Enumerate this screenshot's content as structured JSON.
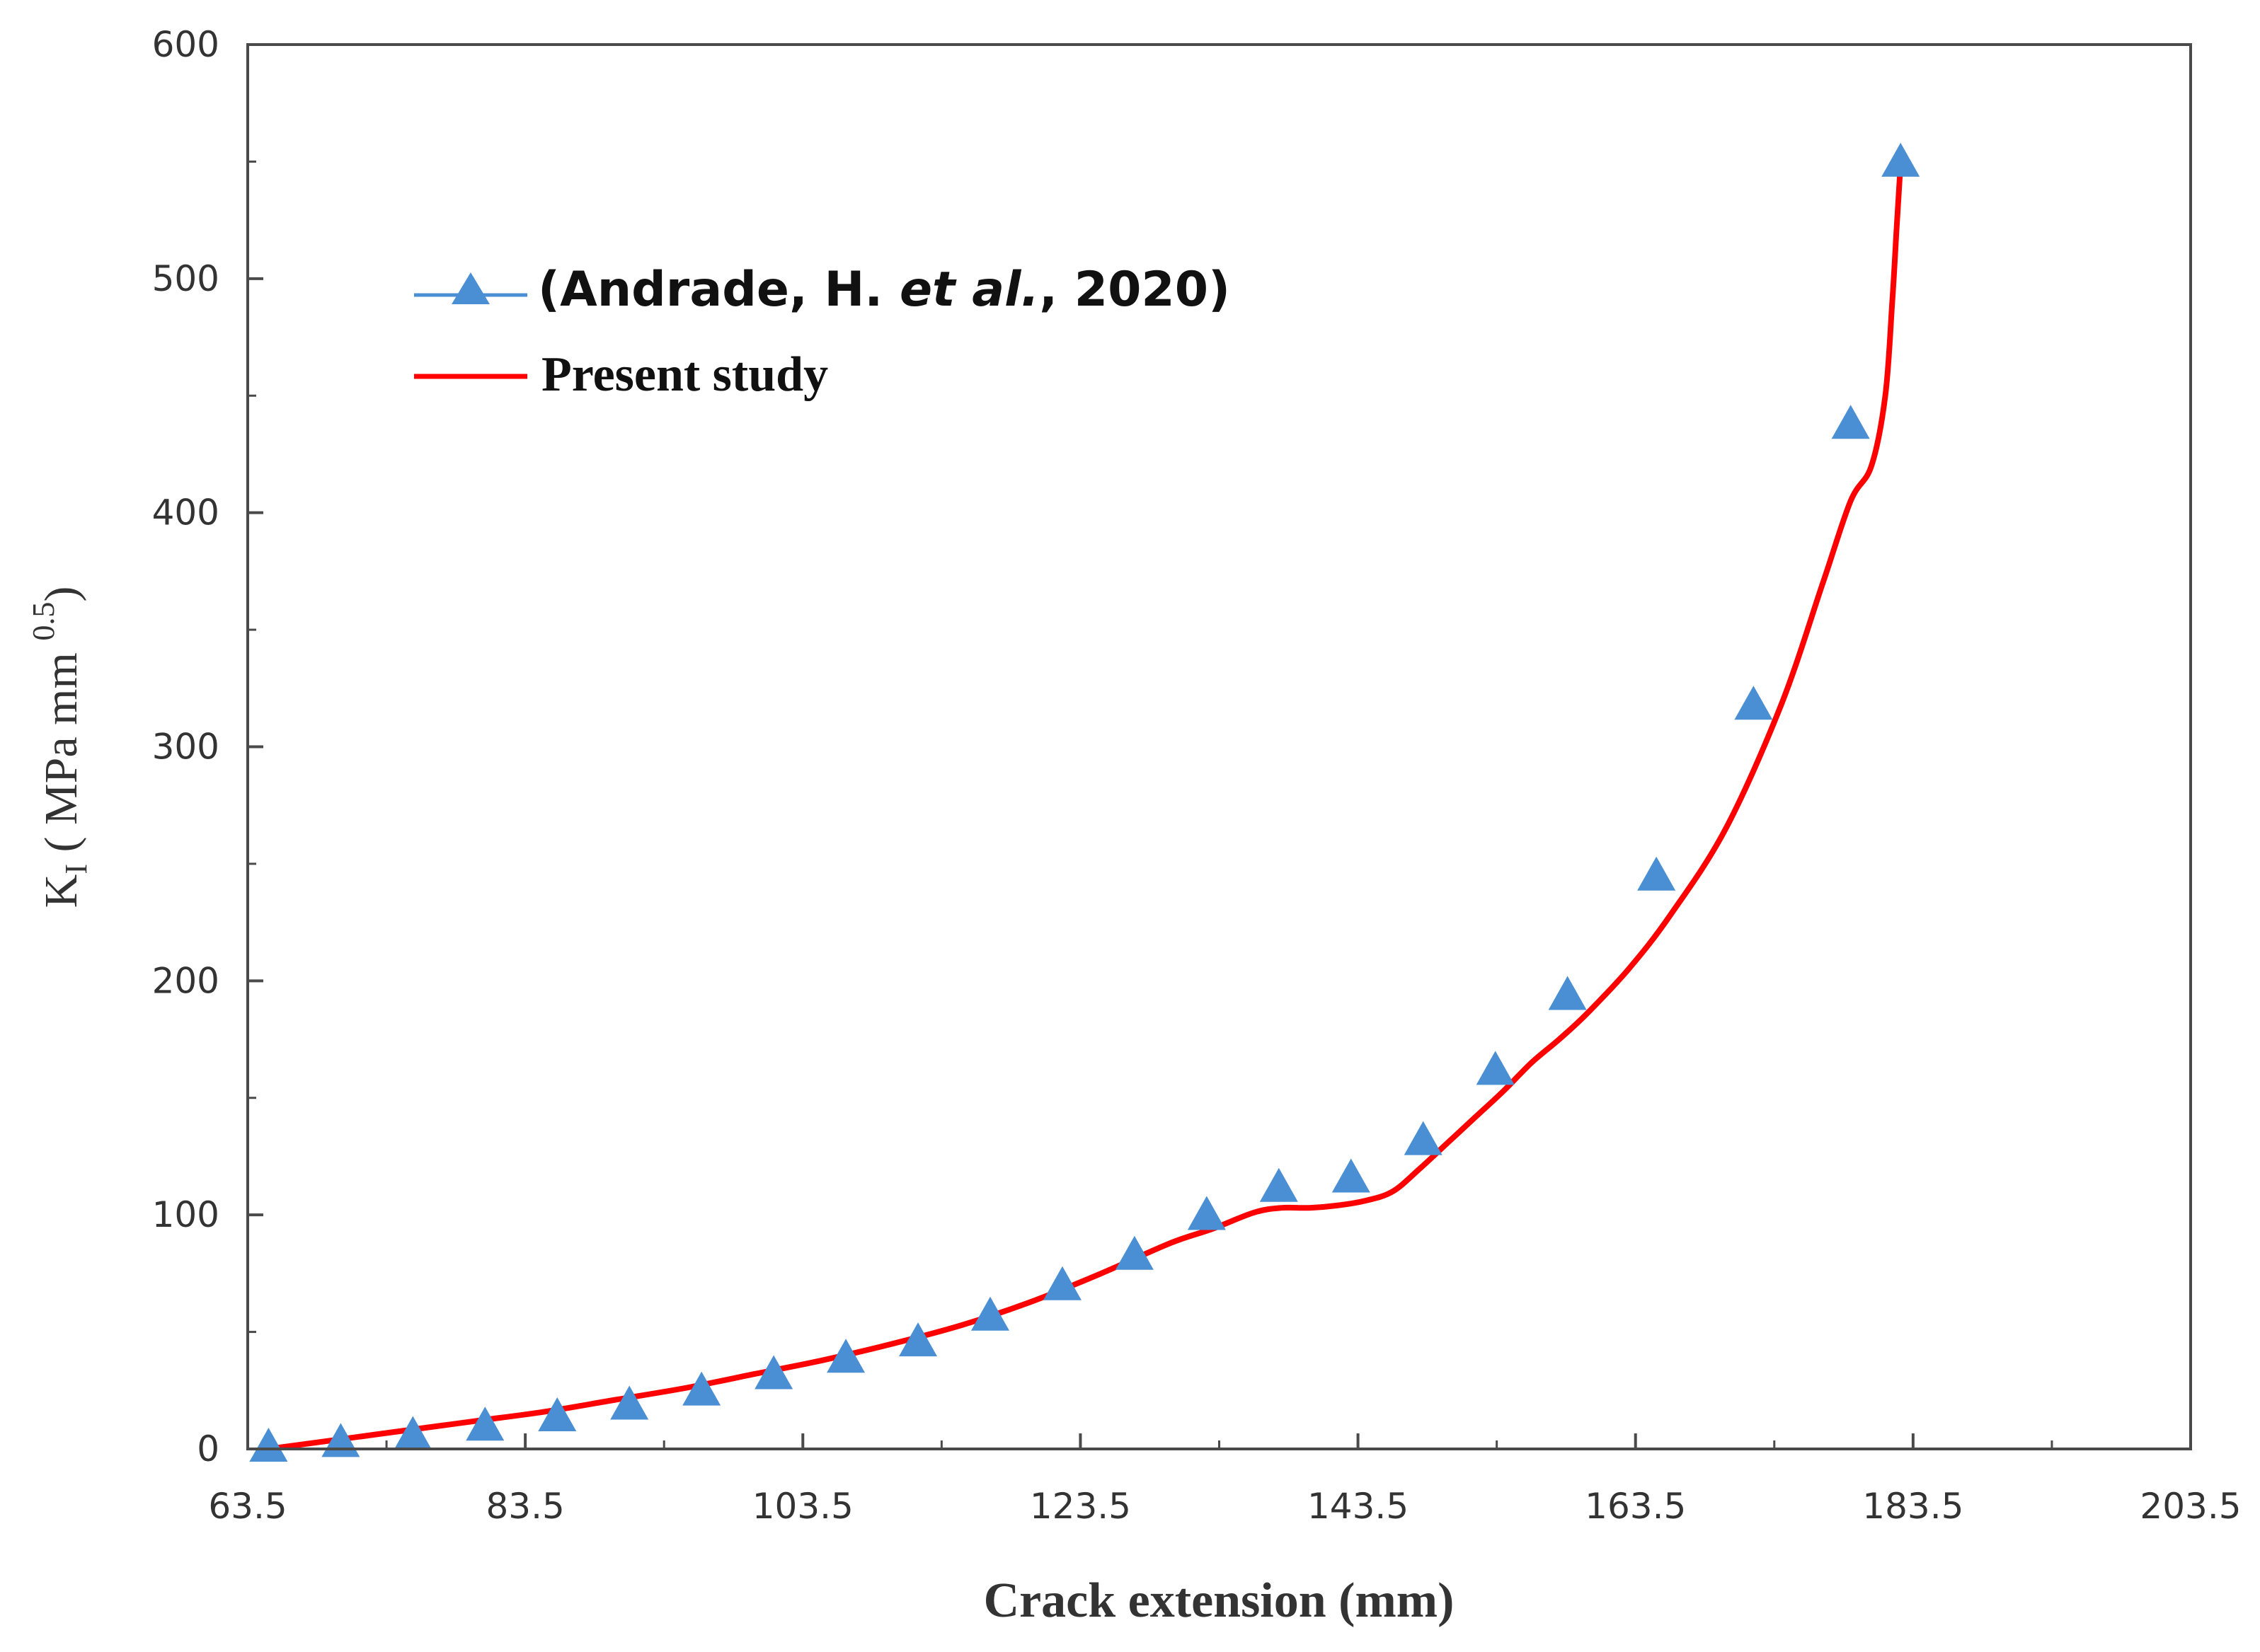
{
  "chart_data": {
    "type": "line",
    "title": "",
    "xlabel": "Crack extension (mm)",
    "ylabel": {
      "symbol": "K",
      "subscript": "I",
      "units_open": " (  MPa mm ",
      "exponent": "0.5",
      "units_close": ")"
    },
    "xlim": [
      63.5,
      203.5
    ],
    "ylim": [
      0,
      600
    ],
    "xticks": [
      "63.5",
      "83.5",
      "103.5",
      "123.5",
      "143.5",
      "163.5",
      "183.5",
      "203.5"
    ],
    "yticks": [
      "0",
      "100",
      "200",
      "300",
      "400",
      "500",
      "600"
    ],
    "grid": false,
    "legend_position": "top-left",
    "legend": {
      "series1_prefix": "(Andrade, H. ",
      "series1_italic": "et al.",
      "series1_suffix": ", 2020)",
      "series2_label": "Present study"
    },
    "series": [
      {
        "name": "(Andrade, H. et al., 2020)",
        "style": "markers",
        "marker": "triangle",
        "color": "#4a8fd4",
        "x": [
          65.0,
          70.2,
          75.4,
          80.6,
          85.8,
          91.0,
          96.2,
          101.4,
          106.6,
          111.8,
          117.0,
          122.2,
          127.4,
          132.6,
          137.8,
          143.0,
          148.2,
          153.4,
          158.6,
          165.0,
          172.0,
          179.0,
          182.6
        ],
        "y": [
          0,
          2,
          5,
          9,
          13,
          18,
          24,
          31,
          38,
          45,
          56,
          69,
          82,
          99,
          111,
          115,
          131,
          161,
          193,
          244,
          317,
          437,
          549
        ]
      },
      {
        "name": "Present study",
        "style": "line",
        "color": "#ff0000",
        "x": [
          65.0,
          70.0,
          75.0,
          80.0,
          85.0,
          90.0,
          95.0,
          100.0,
          105.0,
          110.0,
          115.0,
          120.0,
          125.0,
          130.0,
          133.0,
          136.0,
          138.0,
          140.0,
          142.0,
          144.0,
          146.0,
          148.0,
          150.0,
          152.0,
          154.0,
          156.0,
          158.0,
          160.0,
          163.0,
          166.0,
          170.0,
          174.0,
          177.0,
          179.0,
          180.5,
          181.5,
          182.0,
          182.3,
          182.6
        ],
        "y": [
          0,
          4,
          8,
          12,
          16,
          21,
          26,
          32,
          38,
          45,
          53,
          63,
          75,
          88,
          94,
          101,
          103,
          103,
          104,
          106,
          110,
          120,
          131,
          142,
          153,
          165,
          175,
          186,
          205,
          228,
          265,
          318,
          370,
          405,
          420,
          450,
          490,
          520,
          549
        ]
      }
    ]
  }
}
